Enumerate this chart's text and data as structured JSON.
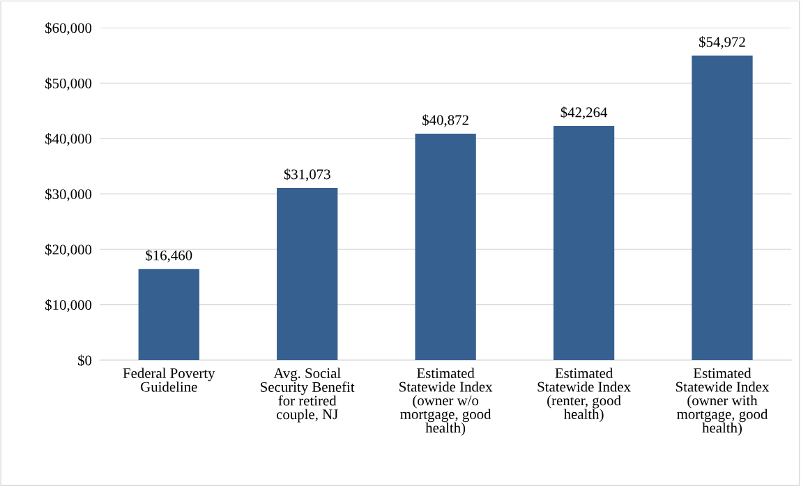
{
  "chart_data": {
    "type": "bar",
    "categories": [
      "Federal Poverty\nGuideline",
      "Avg. Social\nSecurity Benefit\nfor retired\ncouple, NJ",
      "Estimated\nStatewide Index\n(owner w/o\nmortgage, good\nhealth)",
      "Estimated\nStatewide Index\n(renter, good\nhealth)",
      "Estimated\nStatewide Index\n(owner with\nmortgage, good\nhealth)"
    ],
    "values": [
      16460,
      31073,
      40872,
      42264,
      54972
    ],
    "value_labels": [
      "$16,460",
      "$31,073",
      "$40,872",
      "$42,264",
      "$54,972"
    ],
    "color": "#36608f",
    "ylim": [
      0,
      60000
    ],
    "yticks": [
      {
        "value": 0,
        "label": "$0"
      },
      {
        "value": 10000,
        "label": "$10,000"
      },
      {
        "value": 20000,
        "label": "$20,000"
      },
      {
        "value": 30000,
        "label": "$30,000"
      },
      {
        "value": 40000,
        "label": "$40,000"
      },
      {
        "value": 50000,
        "label": "$50,000"
      },
      {
        "value": 60000,
        "label": "$60,000"
      }
    ],
    "grid": "y",
    "legend": false
  }
}
